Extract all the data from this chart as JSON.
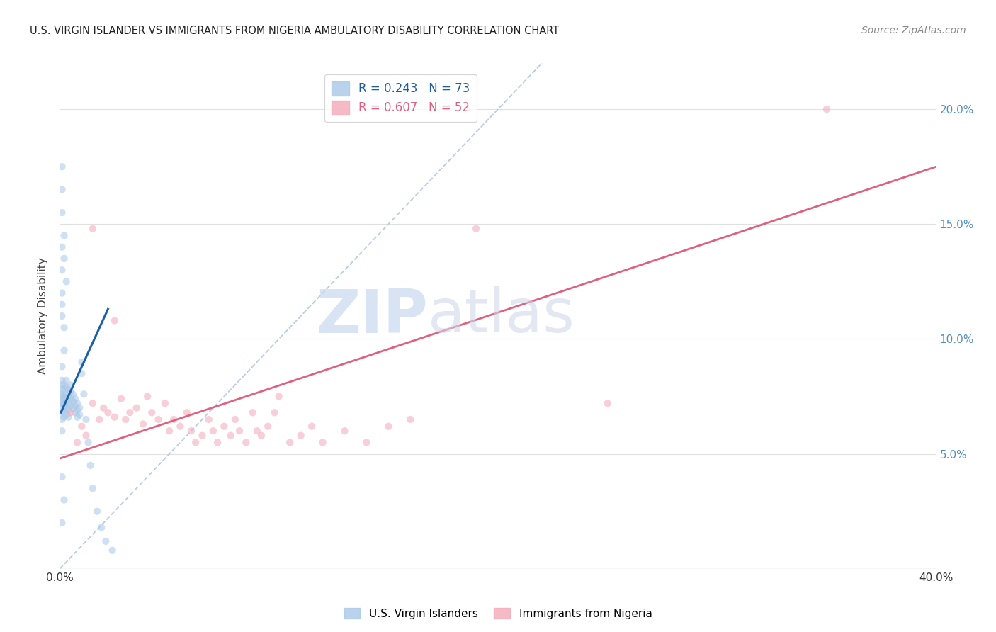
{
  "title": "U.S. VIRGIN ISLANDER VS IMMIGRANTS FROM NIGERIA AMBULATORY DISABILITY CORRELATION CHART",
  "source": "Source: ZipAtlas.com",
  "ylabel": "Ambulatory Disability",
  "xlim": [
    0.0,
    0.4
  ],
  "ylim": [
    0.0,
    0.22
  ],
  "yticks": [
    0.05,
    0.1,
    0.15,
    0.2
  ],
  "ytick_labels": [
    "5.0%",
    "10.0%",
    "15.0%",
    "20.0%"
  ],
  "xticks": [
    0.0,
    0.05,
    0.1,
    0.15,
    0.2,
    0.25,
    0.3,
    0.35,
    0.4
  ],
  "legend_entries": [
    {
      "label": "R = 0.243   N = 73",
      "color": "#a8c8e8"
    },
    {
      "label": "R = 0.607   N = 52",
      "color": "#f4a8b8"
    }
  ],
  "blue_scatter_x": [
    0.001,
    0.001,
    0.001,
    0.001,
    0.001,
    0.001,
    0.001,
    0.001,
    0.001,
    0.001,
    0.002,
    0.002,
    0.002,
    0.002,
    0.002,
    0.002,
    0.002,
    0.002,
    0.003,
    0.003,
    0.003,
    0.003,
    0.003,
    0.003,
    0.004,
    0.004,
    0.004,
    0.004,
    0.004,
    0.005,
    0.005,
    0.005,
    0.005,
    0.006,
    0.006,
    0.006,
    0.007,
    0.007,
    0.007,
    0.008,
    0.008,
    0.008,
    0.009,
    0.009,
    0.01,
    0.01,
    0.011,
    0.012,
    0.013,
    0.014,
    0.015,
    0.017,
    0.019,
    0.021,
    0.024,
    0.001,
    0.001,
    0.002,
    0.002,
    0.003,
    0.001,
    0.002,
    0.001,
    0.001,
    0.001,
    0.001,
    0.001,
    0.002,
    0.001,
    0.001,
    0.001,
    0.002,
    0.001
  ],
  "blue_scatter_y": [
    0.075,
    0.078,
    0.08,
    0.082,
    0.076,
    0.073,
    0.07,
    0.068,
    0.072,
    0.065,
    0.08,
    0.078,
    0.075,
    0.072,
    0.069,
    0.066,
    0.074,
    0.071,
    0.082,
    0.079,
    0.076,
    0.073,
    0.07,
    0.067,
    0.078,
    0.075,
    0.072,
    0.069,
    0.066,
    0.08,
    0.077,
    0.074,
    0.071,
    0.076,
    0.073,
    0.07,
    0.074,
    0.071,
    0.068,
    0.072,
    0.069,
    0.066,
    0.07,
    0.067,
    0.085,
    0.09,
    0.076,
    0.065,
    0.055,
    0.045,
    0.035,
    0.025,
    0.018,
    0.012,
    0.008,
    0.175,
    0.165,
    0.145,
    0.135,
    0.125,
    0.115,
    0.105,
    0.155,
    0.14,
    0.13,
    0.12,
    0.11,
    0.095,
    0.088,
    0.06,
    0.04,
    0.03,
    0.02
  ],
  "pink_scatter_x": [
    0.005,
    0.008,
    0.01,
    0.012,
    0.015,
    0.018,
    0.02,
    0.022,
    0.025,
    0.028,
    0.03,
    0.032,
    0.035,
    0.038,
    0.04,
    0.042,
    0.045,
    0.048,
    0.05,
    0.052,
    0.055,
    0.058,
    0.06,
    0.062,
    0.065,
    0.068,
    0.07,
    0.072,
    0.075,
    0.078,
    0.08,
    0.082,
    0.085,
    0.088,
    0.09,
    0.092,
    0.095,
    0.098,
    0.1,
    0.105,
    0.11,
    0.115,
    0.12,
    0.13,
    0.14,
    0.15,
    0.16,
    0.19,
    0.25,
    0.35,
    0.015,
    0.025
  ],
  "pink_scatter_y": [
    0.068,
    0.055,
    0.062,
    0.058,
    0.072,
    0.065,
    0.07,
    0.068,
    0.066,
    0.074,
    0.065,
    0.068,
    0.07,
    0.063,
    0.075,
    0.068,
    0.065,
    0.072,
    0.06,
    0.065,
    0.062,
    0.068,
    0.06,
    0.055,
    0.058,
    0.065,
    0.06,
    0.055,
    0.062,
    0.058,
    0.065,
    0.06,
    0.055,
    0.068,
    0.06,
    0.058,
    0.062,
    0.068,
    0.075,
    0.055,
    0.058,
    0.062,
    0.055,
    0.06,
    0.055,
    0.062,
    0.065,
    0.148,
    0.072,
    0.2,
    0.148,
    0.108
  ],
  "blue_trend_x": [
    0.0005,
    0.022
  ],
  "blue_trend_y": [
    0.068,
    0.113
  ],
  "pink_trend_x": [
    0.0,
    0.4
  ],
  "pink_trend_y": [
    0.048,
    0.175
  ],
  "ref_line_x": [
    0.0,
    0.22
  ],
  "ref_line_y": [
    0.0,
    0.22
  ],
  "watermark_zip": "ZIP",
  "watermark_atlas": "atlas",
  "scatter_alpha": 0.55,
  "scatter_size": 55,
  "blue_color": "#a8c8e8",
  "pink_color": "#f4a8b8",
  "blue_line_color": "#1a5fa8",
  "pink_line_color": "#e06080",
  "ref_line_color": "#b8cce4",
  "grid_color": "#e0e0e0",
  "title_color": "#222222",
  "right_tick_color": "#5090c0",
  "background_color": "#ffffff"
}
